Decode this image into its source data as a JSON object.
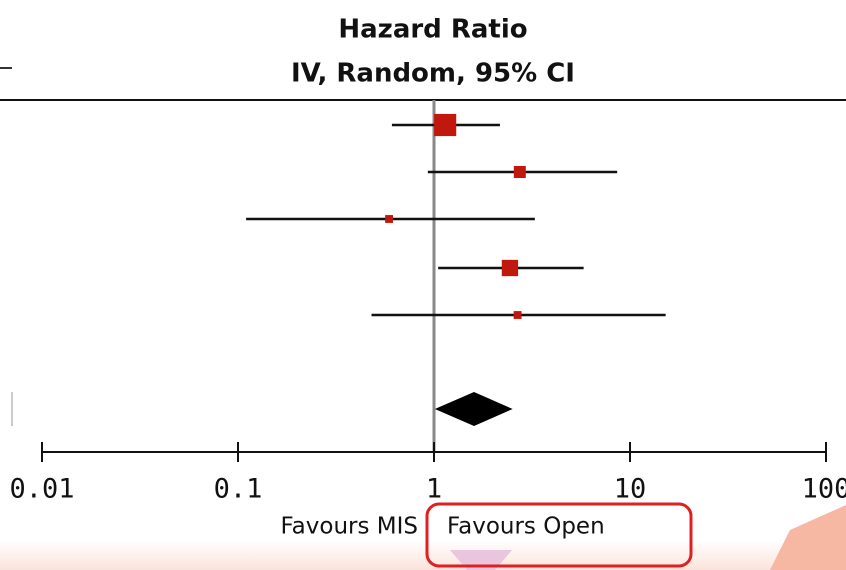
{
  "chart_data": {
    "type": "forest",
    "title": "Hazard Ratio",
    "subtitle": "IV, Random, 95% CI",
    "estimates": [
      1.14,
      2.74,
      0.59,
      2.44,
      2.67
    ],
    "lower": [
      0.61,
      0.93,
      0.11,
      1.05,
      0.48
    ],
    "upper": [
      2.17,
      8.6,
      3.27,
      5.8,
      15.2
    ],
    "weights": [
      48,
      14,
      6,
      26,
      6
    ],
    "pooled": {
      "estimate": 1.6,
      "lower": 1.01,
      "upper": 2.52
    },
    "color": "#c0180c",
    "pooled_color": "#000000",
    "log_x": true,
    "xlim": [
      0.01,
      100
    ],
    "xticks": [
      0.01,
      0.1,
      1,
      10,
      100
    ],
    "left_label": "Favours MIS",
    "right_label": "Favours Open"
  }
}
